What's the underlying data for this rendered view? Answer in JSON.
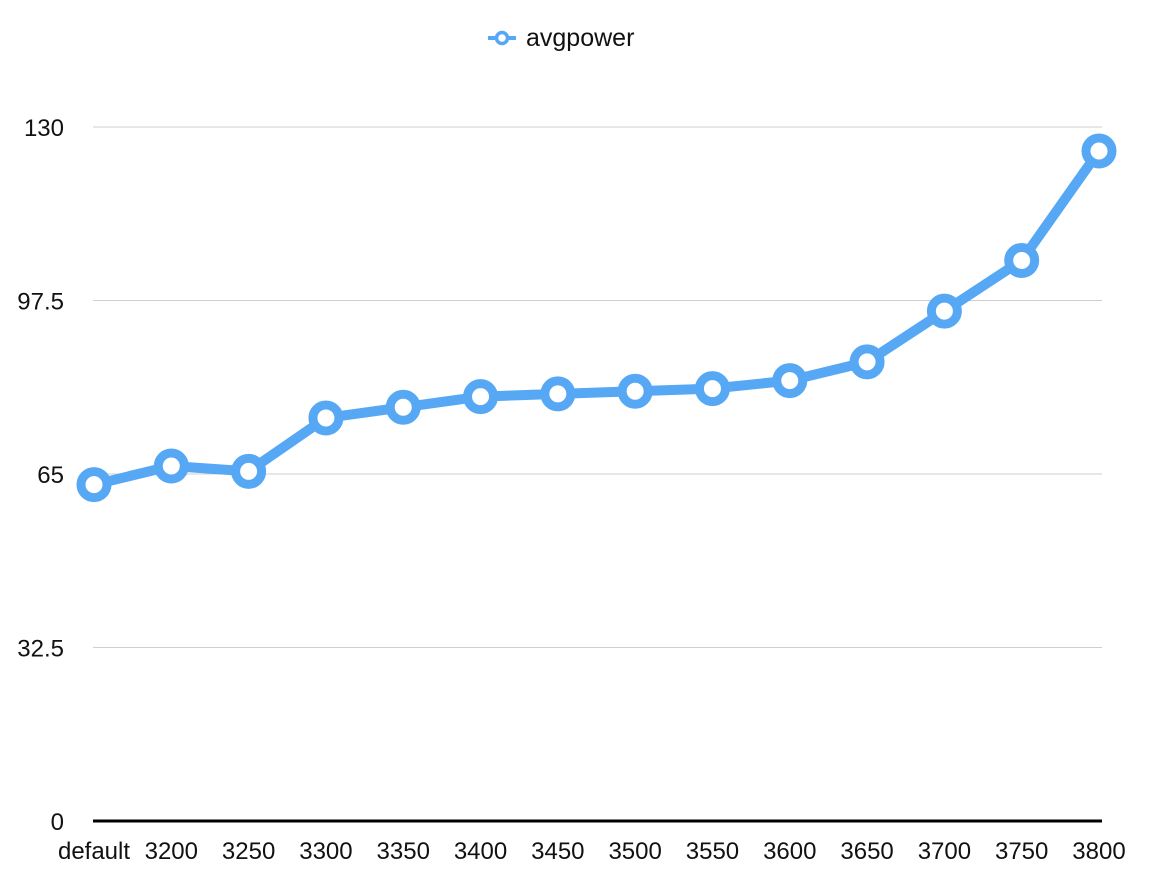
{
  "chart_data": {
    "type": "line",
    "categories": [
      "default",
      "3200",
      "3250",
      "3300",
      "3350",
      "3400",
      "3450",
      "3500",
      "3550",
      "3600",
      "3650",
      "3700",
      "3750",
      "3800"
    ],
    "series": [
      {
        "name": "avgpower",
        "values": [
          63,
          66.5,
          65.5,
          75.5,
          77.5,
          79.5,
          80,
          80.5,
          81,
          82.5,
          86,
          95.5,
          105,
          125.5
        ],
        "color": "#56a8f5"
      }
    ],
    "yticks": [
      "0",
      "32.5",
      "65",
      "97.5",
      "130"
    ],
    "ylim": [
      0,
      130
    ],
    "grid": true,
    "legend_position": "top-center",
    "title": "",
    "xlabel": "",
    "ylabel": ""
  }
}
